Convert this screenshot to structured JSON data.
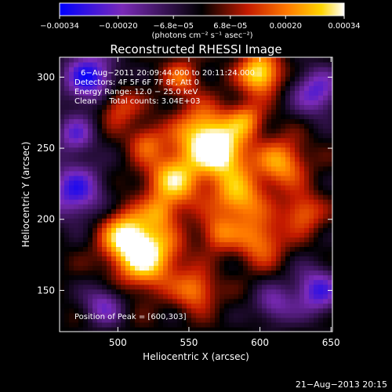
{
  "chart_data": {
    "type": "heatmap",
    "title": "Reconstructed RHESSI Image",
    "xlabel": "Heliocentric X (arcsec)",
    "ylabel": "Heliocentric Y (arcsec)",
    "xlim": [
      459,
      651
    ],
    "ylim": [
      121,
      314
    ],
    "x_ticks": [
      500,
      550,
      600,
      650
    ],
    "y_ticks": [
      150,
      200,
      250,
      300
    ],
    "colorbar": {
      "min": -0.00034,
      "max": 0.00034,
      "ticks": [
        {
          "value": -0.00034,
          "label": "−0.00034"
        },
        {
          "value": -0.0002,
          "label": "−0.00020"
        },
        {
          "value": -6.8e-05,
          "label": "−6.8e−05"
        },
        {
          "value": 6.8e-05,
          "label": "6.8e−05"
        },
        {
          "value": 0.0002,
          "label": "0.00020"
        },
        {
          "value": 0.00034,
          "label": "0.00034"
        }
      ],
      "unit_label": "(photons cm⁻² s⁻¹ asec⁻²)",
      "colormap": [
        "#0000ff",
        "#7a2ab8",
        "#000000",
        "#c41a00",
        "#ff7a00",
        "#ffd500",
        "#ffffff"
      ]
    },
    "annotations": [
      "6−Aug−2011 20:09:44.000 to 20:11:24.000",
      "Detectors: 4F 5F 6F 7F 8F, Att 0",
      "Energy Range: 12.0 − 25.0 keV",
      "Clean     Total counts: 3.04E+03"
    ],
    "peak_label": "Position of Peak = [600,303]",
    "peak": {
      "x": 600,
      "y": 303
    },
    "grid": false
  },
  "footer": {
    "timestamp": "21−Aug−2013 20:15"
  }
}
